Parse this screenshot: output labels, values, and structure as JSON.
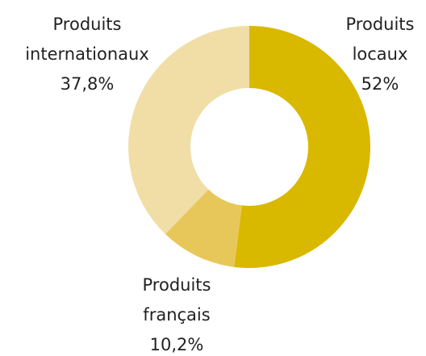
{
  "chart_data": {
    "type": "donut",
    "categories": [
      "Produits locaux",
      "Produits français",
      "Produits internationaux"
    ],
    "values": [
      52,
      10.2,
      37.8
    ],
    "value_labels": [
      "52%",
      "10,2%",
      "37,8%"
    ],
    "colors": [
      "#d9b800",
      "#e8c75a",
      "#f0dea6"
    ]
  }
}
